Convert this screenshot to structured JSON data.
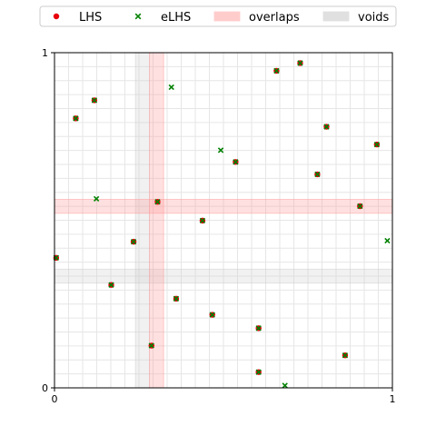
{
  "chart_data": {
    "type": "scatter",
    "title": "",
    "xlabel": "",
    "ylabel": "",
    "xlim": [
      0,
      1
    ],
    "ylim": [
      0,
      1
    ],
    "grid": true,
    "grid_divisions": 24,
    "x_ticks": [
      {
        "value": 0,
        "label": "0"
      },
      {
        "value": 1,
        "label": "1"
      }
    ],
    "y_ticks": [
      {
        "value": 0,
        "label": "0"
      },
      {
        "value": 1,
        "label": "1"
      }
    ],
    "legend": {
      "placement": "top",
      "entries": [
        {
          "label": "LHS",
          "kind": "dot",
          "color": "#e8000b"
        },
        {
          "label": "eLHS",
          "kind": "cross",
          "color": "#008000"
        },
        {
          "label": "overlaps",
          "kind": "patch",
          "color": "#ffcccc"
        },
        {
          "label": "voids",
          "kind": "patch",
          "color": "#e0e0e0"
        }
      ]
    },
    "overlaps": {
      "color": "#ff9999",
      "x_bands": [
        [
          0.2813,
          0.3229
        ]
      ],
      "y_bands": [
        [
          0.5208,
          0.5625
        ]
      ]
    },
    "voids": {
      "color": "#cccccc",
      "x_bands": [
        [
          0.2396,
          0.2813
        ]
      ],
      "y_bands": [
        [
          0.3125,
          0.3542
        ]
      ]
    },
    "series": [
      {
        "name": "LHS",
        "marker": "dot",
        "color": "#e8000b",
        "points": [
          [
            0.005,
            0.388
          ],
          [
            0.063,
            0.804
          ],
          [
            0.118,
            0.858
          ],
          [
            0.168,
            0.307
          ],
          [
            0.234,
            0.436
          ],
          [
            0.287,
            0.126
          ],
          [
            0.305,
            0.555
          ],
          [
            0.36,
            0.266
          ],
          [
            0.438,
            0.499
          ],
          [
            0.467,
            0.218
          ],
          [
            0.536,
            0.674
          ],
          [
            0.604,
            0.178
          ],
          [
            0.604,
            0.047
          ],
          [
            0.657,
            0.946
          ],
          [
            0.727,
            0.969
          ],
          [
            0.778,
            0.637
          ],
          [
            0.805,
            0.779
          ],
          [
            0.86,
            0.097
          ],
          [
            0.904,
            0.542
          ],
          [
            0.954,
            0.726
          ]
        ]
      },
      {
        "name": "eLHS",
        "marker": "cross",
        "color": "#008000",
        "points": [
          [
            0.124,
            0.564
          ],
          [
            0.346,
            0.897
          ],
          [
            0.492,
            0.709
          ],
          [
            0.682,
            0.007
          ],
          [
            0.985,
            0.439
          ]
        ]
      }
    ]
  }
}
